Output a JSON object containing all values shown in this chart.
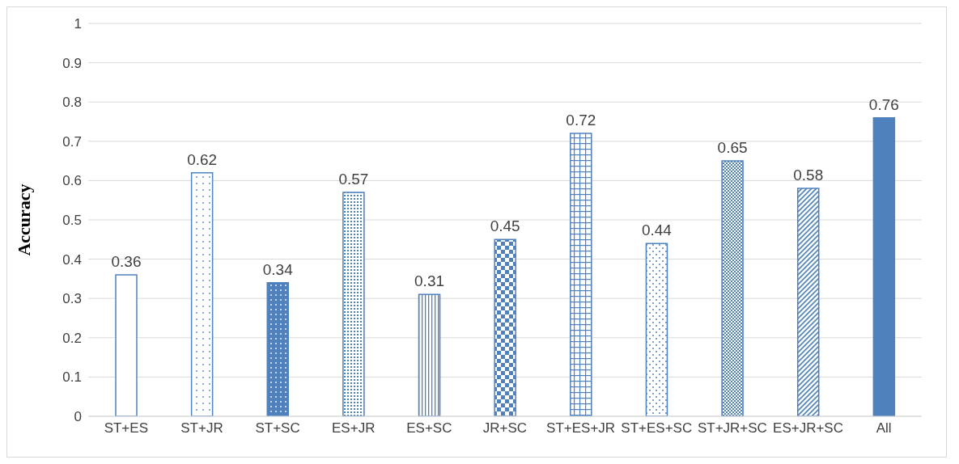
{
  "chart_data": {
    "type": "bar",
    "ylabel": "Accuracy",
    "categories": [
      "ST+ES",
      "ST+JR",
      "ST+SC",
      "ES+JR",
      "ES+SC",
      "JR+SC",
      "ST+ES+JR",
      "ST+ES+SC",
      "ST+JR+SC",
      "ES+JR+SC",
      "All"
    ],
    "values": [
      0.36,
      0.62,
      0.34,
      0.57,
      0.31,
      0.45,
      0.72,
      0.44,
      0.65,
      0.58,
      0.76
    ],
    "color": "#4f81bd",
    "ylim": [
      0,
      1
    ],
    "yticks": [
      0,
      0.1,
      0.2,
      0.3,
      0.4,
      0.5,
      0.6,
      0.7,
      0.8,
      0.9,
      1
    ],
    "grid": "y",
    "data_labels": true
  }
}
